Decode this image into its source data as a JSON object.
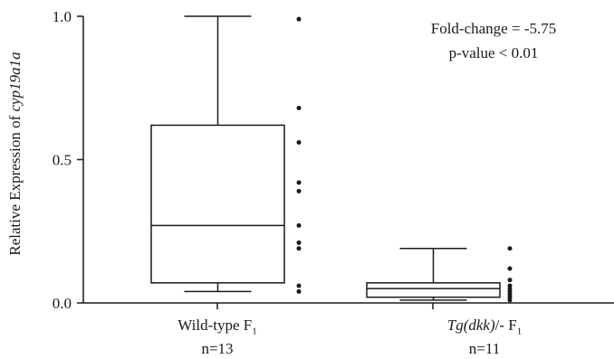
{
  "chart_data": {
    "type": "box",
    "ylabel": {
      "prefix": "Relative Expression of ",
      "gene": "cyp19a1a"
    },
    "ylim": [
      0,
      1.0
    ],
    "yticks": [
      "0.0",
      "0.5",
      "1.0"
    ],
    "annotation": {
      "line1": "Fold-change = -5.75",
      "line2": "p-value < 0.01"
    },
    "categories": [
      {
        "label_italic": "",
        "label": "Wild-type F",
        "subscript": "1",
        "n": "n=13"
      },
      {
        "label_italic": "Tg(dkk)",
        "label": "/- F",
        "subscript": "1",
        "n": "n=11"
      }
    ],
    "boxes": [
      {
        "min": 0.04,
        "q1": 0.07,
        "median": 0.27,
        "q3": 0.62,
        "max": 1.0
      },
      {
        "min": 0.01,
        "q1": 0.02,
        "median": 0.05,
        "q3": 0.07,
        "max": 0.19
      }
    ],
    "points": [
      [
        0.99,
        0.68,
        0.56,
        0.42,
        0.39,
        0.27,
        0.21,
        0.19,
        0.06,
        0.04
      ],
      [
        0.19,
        0.12,
        0.08,
        0.06,
        0.05,
        0.04,
        0.03,
        0.02,
        0.01
      ]
    ]
  }
}
